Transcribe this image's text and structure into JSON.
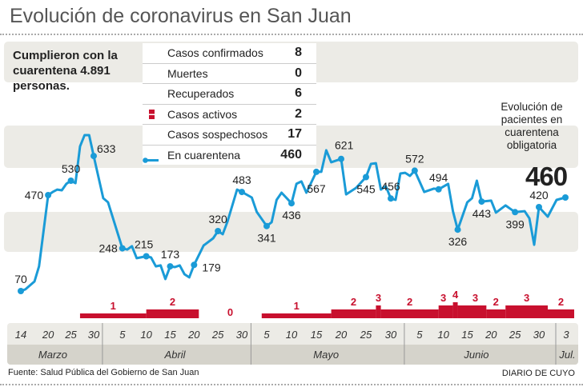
{
  "title": "Evolución de coronavirus en San Juan",
  "note": "Cumplieron con la cuarentena  4.891 personas.",
  "stats": [
    {
      "label": "Casos confirmados",
      "value": "8",
      "icon": ""
    },
    {
      "label": "Muertes",
      "value": "0",
      "icon": ""
    },
    {
      "label": "Recuperados",
      "value": "6",
      "icon": ""
    },
    {
      "label": "Casos activos",
      "value": "2",
      "icon": "red-bar-icon"
    },
    {
      "label": "Casos sospechosos",
      "value": "17",
      "icon": ""
    },
    {
      "label": "En cuarentena",
      "value": "460",
      "icon": "blue-line-dot-icon"
    }
  ],
  "annotation": "Evolución de pacientes en cuarentena obligatoria",
  "current_value": "460",
  "source": "Fuente: Salud Pública del Gobierno de San Juan",
  "brand": "DIARIO DE CUYO",
  "colors": {
    "line": "#1a9bd7",
    "active": "#c8102e",
    "band": "#ecebe6",
    "month_band": "#d5d3cb"
  },
  "chart_data": {
    "type": "line",
    "x_ticks": [
      {
        "date": "03-14",
        "label": "14"
      },
      {
        "date": "03-20",
        "label": "20"
      },
      {
        "date": "03-25",
        "label": "25"
      },
      {
        "date": "03-30",
        "label": "30"
      },
      {
        "date": "04-05",
        "label": "5"
      },
      {
        "date": "04-10",
        "label": "10"
      },
      {
        "date": "04-15",
        "label": "15"
      },
      {
        "date": "04-20",
        "label": "20"
      },
      {
        "date": "04-25",
        "label": "25"
      },
      {
        "date": "04-30",
        "label": "30"
      },
      {
        "date": "05-05",
        "label": "5"
      },
      {
        "date": "05-10",
        "label": "10"
      },
      {
        "date": "05-15",
        "label": "15"
      },
      {
        "date": "05-20",
        "label": "20"
      },
      {
        "date": "05-25",
        "label": "25"
      },
      {
        "date": "05-30",
        "label": "30"
      },
      {
        "date": "06-05",
        "label": "5"
      },
      {
        "date": "06-10",
        "label": "10"
      },
      {
        "date": "06-15",
        "label": "15"
      },
      {
        "date": "06-20",
        "label": "20"
      },
      {
        "date": "06-25",
        "label": "25"
      },
      {
        "date": "06-30",
        "label": "30"
      },
      {
        "date": "07-03",
        "label": "3"
      }
    ],
    "months": [
      {
        "label": "Marzo",
        "from": "03-11",
        "to": "03-31"
      },
      {
        "label": "Abril",
        "from": "04-01",
        "to": "05-01"
      },
      {
        "label": "Mayo",
        "from": "05-02",
        "to": "06-01"
      },
      {
        "label": "Junio",
        "from": "06-02",
        "to": "07-01"
      },
      {
        "label": "Jul.",
        "from": "07-02",
        "to": "07-05"
      }
    ],
    "series": [
      {
        "name": "En cuarentena",
        "points": [
          {
            "d": "03-14",
            "v": 70,
            "l": true
          },
          {
            "d": "03-15",
            "v": 77
          },
          {
            "d": "03-17",
            "v": 110
          },
          {
            "d": "03-18",
            "v": 173
          },
          {
            "d": "03-20",
            "v": 470,
            "l": true
          },
          {
            "d": "03-21",
            "v": 483
          },
          {
            "d": "03-22",
            "v": 493
          },
          {
            "d": "03-23",
            "v": 490
          },
          {
            "d": "03-24",
            "v": 517
          },
          {
            "d": "03-25",
            "v": 530,
            "l": true
          },
          {
            "d": "03-26",
            "v": 520
          },
          {
            "d": "03-27",
            "v": 673
          },
          {
            "d": "03-28",
            "v": 720
          },
          {
            "d": "03-29",
            "v": 720
          },
          {
            "d": "03-30",
            "v": 633,
            "l": true
          },
          {
            "d": "04-01",
            "v": 457
          },
          {
            "d": "04-02",
            "v": 440
          },
          {
            "d": "04-05",
            "v": 248,
            "l": true
          },
          {
            "d": "04-06",
            "v": 243
          },
          {
            "d": "04-07",
            "v": 257
          },
          {
            "d": "04-08",
            "v": 207
          },
          {
            "d": "04-10",
            "v": 215,
            "l": true
          },
          {
            "d": "04-11",
            "v": 210
          },
          {
            "d": "04-12",
            "v": 173
          },
          {
            "d": "04-13",
            "v": 177
          },
          {
            "d": "04-14",
            "v": 120
          },
          {
            "d": "04-15",
            "v": 173,
            "l": true
          },
          {
            "d": "04-16",
            "v": 170
          },
          {
            "d": "04-17",
            "v": 177
          },
          {
            "d": "04-18",
            "v": 140
          },
          {
            "d": "04-19",
            "v": 127
          },
          {
            "d": "04-20",
            "v": 179,
            "l": true
          },
          {
            "d": "04-22",
            "v": 260
          },
          {
            "d": "04-24",
            "v": 290
          },
          {
            "d": "04-25",
            "v": 320,
            "l": true
          },
          {
            "d": "04-26",
            "v": 307
          },
          {
            "d": "04-27",
            "v": 360
          },
          {
            "d": "04-29",
            "v": 493
          },
          {
            "d": "04-30",
            "v": 483,
            "l": true
          },
          {
            "d": "05-02",
            "v": 460
          },
          {
            "d": "05-03",
            "v": 400
          },
          {
            "d": "05-05",
            "v": 341,
            "l": true
          },
          {
            "d": "05-06",
            "v": 357
          },
          {
            "d": "05-07",
            "v": 450
          },
          {
            "d": "05-08",
            "v": 480
          },
          {
            "d": "05-10",
            "v": 436,
            "l": true
          },
          {
            "d": "05-11",
            "v": 517
          },
          {
            "d": "05-12",
            "v": 527
          },
          {
            "d": "05-13",
            "v": 480
          },
          {
            "d": "05-15",
            "v": 567,
            "l": true
          },
          {
            "d": "05-16",
            "v": 567
          },
          {
            "d": "05-17",
            "v": 657
          },
          {
            "d": "05-18",
            "v": 607
          },
          {
            "d": "05-20",
            "v": 621,
            "l": true
          },
          {
            "d": "05-21",
            "v": 473
          },
          {
            "d": "05-23",
            "v": 500
          },
          {
            "d": "05-25",
            "v": 545,
            "l": true
          },
          {
            "d": "05-26",
            "v": 600
          },
          {
            "d": "05-27",
            "v": 603
          },
          {
            "d": "05-28",
            "v": 493
          },
          {
            "d": "05-29",
            "v": 507
          },
          {
            "d": "05-30",
            "v": 456,
            "l": true
          },
          {
            "d": "05-31",
            "v": 450
          },
          {
            "d": "06-01",
            "v": 560
          },
          {
            "d": "06-02",
            "v": 563
          },
          {
            "d": "06-03",
            "v": 550
          },
          {
            "d": "06-04",
            "v": 572,
            "l": true
          },
          {
            "d": "06-06",
            "v": 483
          },
          {
            "d": "06-08",
            "v": 497
          },
          {
            "d": "06-09",
            "v": 494,
            "l": true
          },
          {
            "d": "06-11",
            "v": 517
          },
          {
            "d": "06-12",
            "v": 403
          },
          {
            "d": "06-13",
            "v": 326,
            "l": true
          },
          {
            "d": "06-15",
            "v": 440
          },
          {
            "d": "06-16",
            "v": 457
          },
          {
            "d": "06-17",
            "v": 530
          },
          {
            "d": "06-18",
            "v": 443,
            "l": true
          },
          {
            "d": "06-20",
            "v": 447
          },
          {
            "d": "06-21",
            "v": 397
          },
          {
            "d": "06-23",
            "v": 427
          },
          {
            "d": "06-25",
            "v": 399,
            "l": true
          },
          {
            "d": "06-27",
            "v": 403
          },
          {
            "d": "06-28",
            "v": 373
          },
          {
            "d": "06-29",
            "v": 263
          },
          {
            "d": "06-30",
            "v": 420,
            "l": true
          },
          {
            "d": "07-01",
            "v": 380
          },
          {
            "d": "07-02",
            "v": 450
          },
          {
            "d": "07-03",
            "v": 460,
            "l": true,
            "end": true
          }
        ]
      },
      {
        "name": "Casos activos",
        "type": "step",
        "segments": [
          {
            "from": "03-27",
            "to": "04-10",
            "v": 1
          },
          {
            "from": "04-10",
            "to": "04-21",
            "v": 2
          },
          {
            "from": "04-21",
            "to": "05-04",
            "v": 0
          },
          {
            "from": "05-04",
            "to": "05-18",
            "v": 1
          },
          {
            "from": "05-18",
            "to": "05-27",
            "v": 2
          },
          {
            "from": "05-27",
            "to": "05-28",
            "v": 3
          },
          {
            "from": "05-28",
            "to": "06-09",
            "v": 2
          },
          {
            "from": "06-09",
            "to": "06-12",
            "v": 3
          },
          {
            "from": "06-12",
            "to": "06-13",
            "v": 4
          },
          {
            "from": "06-13",
            "to": "06-19",
            "v": 3
          },
          {
            "from": "06-19",
            "to": "06-23",
            "v": 2
          },
          {
            "from": "06-23",
            "to": "07-01",
            "v": 3
          },
          {
            "from": "07-01",
            "to": "07-04",
            "v": 2
          }
        ]
      }
    ],
    "grid": false
  }
}
